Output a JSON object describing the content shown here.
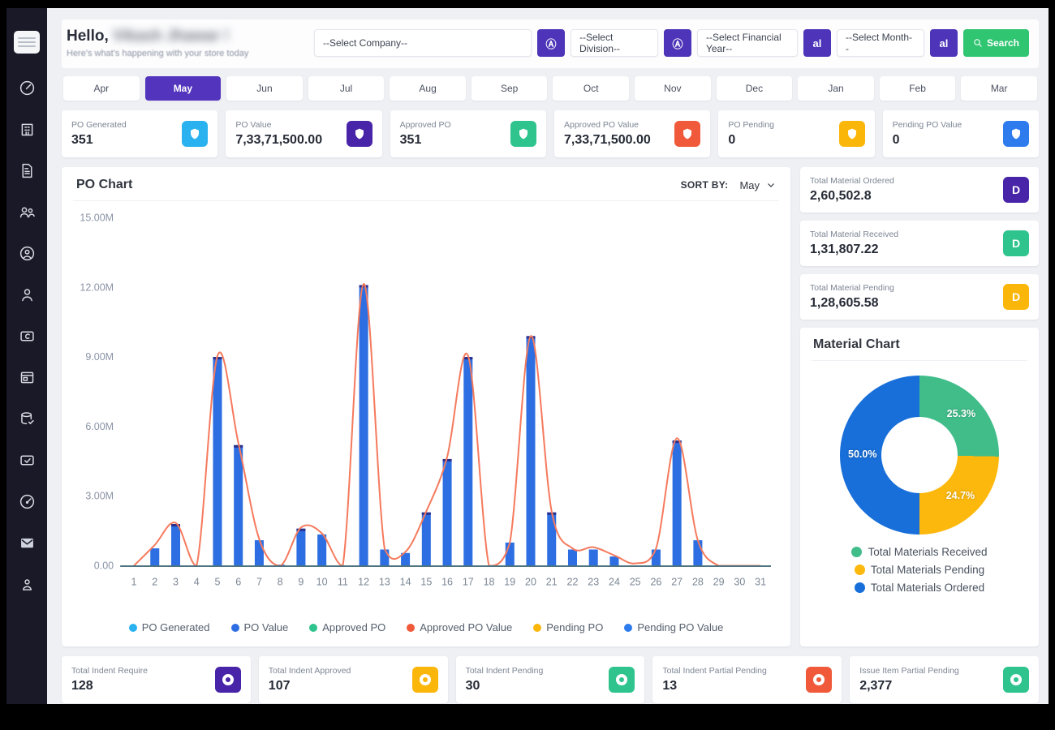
{
  "header": {
    "greeting_prefix": "Hello,",
    "user_name": "Vikash Jhawar !",
    "subtitle": "Here's what's happening with your store today",
    "filters": {
      "company_placeholder": "--Select Company--",
      "division_placeholder": "--Select Division--",
      "financial_year_placeholder": "--Select Financial Year--",
      "month_placeholder": "--Select Month--",
      "all_icon_glyph": "Ⓐ",
      "all_short_label": "al",
      "search_label": "Search"
    }
  },
  "sidebar": {
    "items": [
      {
        "icon": "dashboard-gauge-icon"
      },
      {
        "icon": "company-building-icon"
      },
      {
        "icon": "document-icon"
      },
      {
        "icon": "users-group-icon"
      },
      {
        "icon": "user-circle-icon"
      },
      {
        "icon": "user-icon"
      },
      {
        "icon": "card-sync-icon"
      },
      {
        "icon": "browser-window-icon"
      },
      {
        "icon": "database-check-icon"
      },
      {
        "icon": "card-check-icon"
      },
      {
        "icon": "speedometer-icon"
      },
      {
        "icon": "mail-icon"
      },
      {
        "icon": "person-icon"
      }
    ]
  },
  "months": {
    "items": [
      "Apr",
      "May",
      "Jun",
      "Jul",
      "Aug",
      "Sep",
      "Oct",
      "Nov",
      "Dec",
      "Jan",
      "Feb",
      "Mar"
    ],
    "selected": "May"
  },
  "po_stats": [
    {
      "label": "PO Generated",
      "value": "351",
      "color": "#29b2ef",
      "icon": "shield-icon"
    },
    {
      "label": "PO Value",
      "value": "7,33,71,500.00",
      "color": "#4824a8",
      "icon": "shield-icon"
    },
    {
      "label": "Approved PO",
      "value": "351",
      "color": "#2fc48d",
      "icon": "shield-icon"
    },
    {
      "label": "Approved PO Value",
      "value": "7,33,71,500.00",
      "color": "#f05a3a",
      "icon": "shield-icon"
    },
    {
      "label": "PO Pending",
      "value": "0",
      "color": "#fbb60a",
      "icon": "shield-icon"
    },
    {
      "label": "Pending PO Value",
      "value": "0",
      "color": "#2e7bee",
      "icon": "shield-icon"
    }
  ],
  "po_chart": {
    "title": "PO Chart",
    "sort_by_label": "SORT BY:",
    "sort_value": "May"
  },
  "chart_data": [
    {
      "type": "bar",
      "title": "PO Chart",
      "x": [
        1,
        2,
        3,
        4,
        5,
        6,
        7,
        8,
        9,
        10,
        11,
        12,
        13,
        14,
        15,
        16,
        17,
        18,
        19,
        20,
        21,
        22,
        23,
        24,
        25,
        26,
        27,
        28,
        29,
        30,
        31
      ],
      "unit": "millions",
      "ylim": [
        0,
        15
      ],
      "yticks": [
        "0.00",
        "3.00M",
        "6.00M",
        "9.00M",
        "12.00M",
        "15.00M"
      ],
      "grid": false,
      "legend_position": "bottom",
      "series": [
        {
          "name": "PO Value",
          "render": "bar",
          "color": "#2d6fe2",
          "values": [
            0,
            0.75,
            1.8,
            0,
            9.0,
            5.2,
            1.1,
            0.05,
            1.6,
            1.35,
            0,
            12.1,
            0.7,
            0.55,
            2.3,
            4.6,
            9.0,
            0,
            1.0,
            9.9,
            2.3,
            0.7,
            0.7,
            0.4,
            0,
            0.7,
            5.4,
            1.1,
            0,
            0,
            0
          ]
        },
        {
          "name": "Approved PO Value",
          "render": "line",
          "color": "#f57a5d",
          "values": [
            0,
            0.9,
            1.85,
            0,
            9.05,
            5.3,
            1.15,
            0,
            1.65,
            1.4,
            0,
            12.15,
            0.75,
            0.6,
            2.35,
            4.7,
            9.05,
            0,
            1.0,
            9.9,
            2.35,
            0.75,
            0.8,
            0.45,
            0.1,
            0.75,
            5.5,
            1.1,
            0,
            0,
            0
          ]
        }
      ],
      "legend": [
        {
          "label": "PO Generated",
          "color": "#29b2ef"
        },
        {
          "label": "PO Value",
          "color": "#2d6fe2"
        },
        {
          "label": "Approved PO",
          "color": "#2fc48d"
        },
        {
          "label": "Approved PO Value",
          "color": "#f05a3a"
        },
        {
          "label": "Pending PO",
          "color": "#fbb60a"
        },
        {
          "label": "Pending PO Value",
          "color": "#2e7bee"
        }
      ]
    },
    {
      "type": "pie",
      "title": "Material Chart",
      "labels": [
        "Total Materials Received",
        "Total Materials Pending",
        "Total Materials Ordered"
      ],
      "values": [
        25.3,
        24.7,
        50.0
      ],
      "display_labels": [
        "25.3%",
        "24.7%",
        "50.0%"
      ],
      "colors": [
        "#41bd8a",
        "#fcb80d",
        "#186fd9"
      ],
      "donut": true,
      "legend_position": "bottom"
    }
  ],
  "material_stats": [
    {
      "label": "Total Material Ordered",
      "value": "2,60,502.8",
      "color": "#4824a8",
      "icon": "letter-d-badge",
      "glyph": "D"
    },
    {
      "label": "Total Material Received",
      "value": "1,31,807.22",
      "color": "#2fc48d",
      "icon": "letter-d-badge",
      "glyph": "D"
    },
    {
      "label": "Total Material Pending",
      "value": "1,28,605.58",
      "color": "#fbb60a",
      "icon": "letter-d-badge",
      "glyph": "D"
    }
  ],
  "material_chart": {
    "title": "Material Chart"
  },
  "indent_stats": [
    {
      "label": "Total Indent Require",
      "value": "128",
      "color": "#4824a8",
      "icon": "ring-icon"
    },
    {
      "label": "Total Indent Approved",
      "value": "107",
      "color": "#fbb60a",
      "icon": "ring-icon"
    },
    {
      "label": "Total Indent Pending",
      "value": "30",
      "color": "#2fc48d",
      "icon": "ring-icon"
    },
    {
      "label": "Total Indent Partial Pending",
      "value": "13",
      "color": "#f05a3a",
      "icon": "ring-icon"
    },
    {
      "label": "Issue Item Partial Pending",
      "value": "2,377",
      "color": "#2fc48d",
      "icon": "ring-icon"
    }
  ]
}
